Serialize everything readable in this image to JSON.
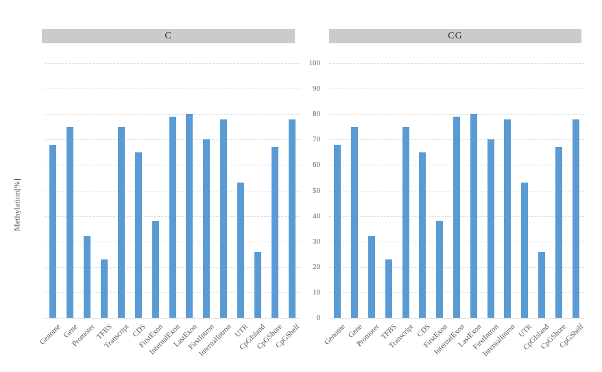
{
  "figure": {
    "ylabel": "Methylation[%]",
    "background": "#ffffff",
    "yticks": [
      0,
      10,
      20,
      30,
      40,
      50,
      60,
      70,
      80,
      90,
      100
    ]
  },
  "colors": {
    "bar": "#5b9bd5",
    "gridline": "#dcdcdc",
    "axis_line": "#cfcfcf",
    "header_bg": "#cbcbcb",
    "header_text": "#303030",
    "tick_text": "#595959"
  },
  "chart_data": [
    {
      "type": "bar",
      "title": "C",
      "ylabel": "Methylation[%]",
      "xlabel": "",
      "ylim": [
        0,
        100
      ],
      "grid": "horizontal-dashed",
      "legend": "none",
      "categories": [
        "Genome",
        "Gene",
        "Promoter",
        "TFBS",
        "Transcript",
        "CDS",
        "FirstExon",
        "InternalExon",
        "LastExon",
        "FirstIntron",
        "InternalIntron",
        "UTR",
        "CpGIsland",
        "CpGShore",
        "CpGShelf"
      ],
      "values": [
        68,
        75,
        32,
        23,
        75,
        65,
        38,
        79,
        80,
        70,
        78,
        53,
        26,
        67,
        78
      ]
    },
    {
      "type": "bar",
      "title": "CG",
      "ylabel": "Methylation[%]",
      "xlabel": "",
      "ylim": [
        0,
        100
      ],
      "grid": "horizontal-dashed",
      "legend": "none",
      "categories": [
        "Genome",
        "Gene",
        "Promoter",
        "TFBS",
        "Transcript",
        "CDS",
        "FirstExon",
        "InternalExon",
        "LastExon",
        "FirstIntron",
        "InternalIntron",
        "UTR",
        "CpGIsland",
        "CpGShore",
        "CpGShelf"
      ],
      "values": [
        68,
        75,
        32,
        23,
        75,
        65,
        38,
        79,
        80,
        70,
        78,
        53,
        26,
        67,
        78
      ]
    }
  ]
}
